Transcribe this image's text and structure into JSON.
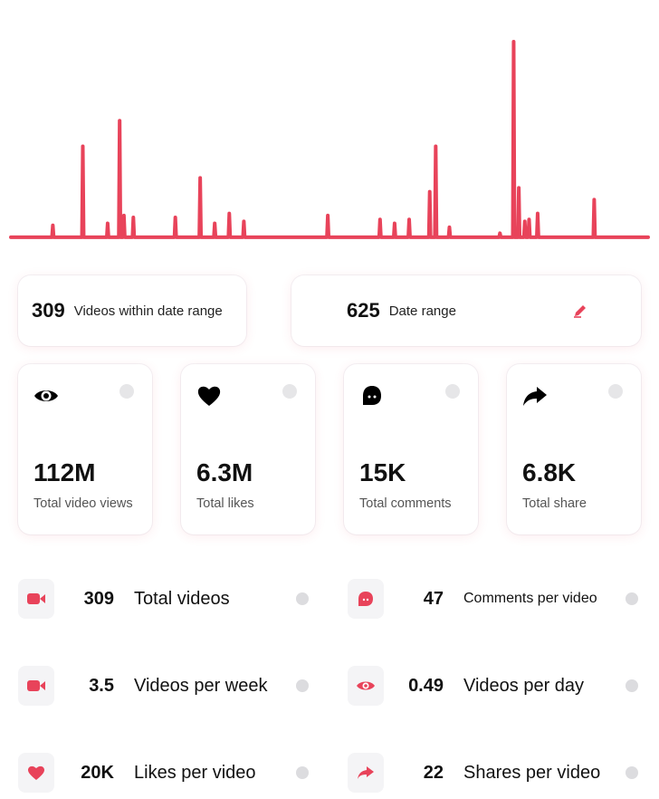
{
  "chart_data": {
    "type": "line",
    "title": "",
    "xlabel": "",
    "ylabel": "",
    "color": "#e8435a",
    "baseline_color": "#7fb7ea",
    "y_max": 100,
    "values": [
      1,
      1,
      1,
      1,
      1,
      1,
      1,
      1,
      1,
      1,
      1,
      1,
      1,
      1,
      1,
      1,
      1,
      1,
      1,
      1,
      1,
      1,
      1,
      1,
      1,
      1,
      1,
      1,
      1,
      1,
      1,
      1,
      1,
      1,
      1,
      1,
      1,
      1,
      1,
      1,
      1,
      1,
      1,
      1,
      1,
      1,
      1,
      1,
      1,
      7,
      1,
      1,
      1,
      1,
      1,
      1,
      1,
      1,
      1,
      1,
      1,
      1,
      1,
      1,
      1,
      1,
      1,
      1,
      1,
      1,
      1,
      1,
      1,
      1,
      1,
      1,
      1,
      1,
      1,
      1,
      1,
      1,
      1,
      1,
      47,
      1,
      1,
      1,
      1,
      1,
      1,
      1,
      1,
      1,
      1,
      1,
      1,
      1,
      1,
      1,
      1,
      1,
      1,
      1,
      1,
      1,
      1,
      1,
      1,
      1,
      1,
      1,
      1,
      8,
      1,
      1,
      1,
      1,
      1,
      1,
      1,
      1,
      1,
      1,
      1,
      1,
      1,
      60,
      1,
      1,
      1,
      1,
      12,
      1,
      1,
      1,
      1,
      1,
      1,
      1,
      1,
      1,
      1,
      11,
      1,
      1,
      1,
      1,
      1,
      1,
      1,
      1,
      1,
      1,
      1,
      1,
      1,
      1,
      1,
      1,
      1,
      1,
      1,
      1,
      1,
      1,
      1,
      1,
      1,
      1,
      1,
      1,
      1,
      1,
      1,
      1,
      1,
      1,
      1,
      1,
      1,
      1,
      1,
      1,
      1,
      1,
      1,
      1,
      1,
      1,
      1,
      1,
      11,
      1,
      1,
      1,
      1,
      1,
      1,
      1,
      1,
      1,
      1,
      1,
      1,
      1,
      1,
      1,
      1,
      1,
      1,
      1,
      1,
      1,
      1,
      1,
      1,
      1,
      1,
      1,
      1,
      31,
      1,
      1,
      1,
      1,
      1,
      1,
      1,
      1,
      1,
      1,
      1,
      1,
      1,
      1,
      1,
      1,
      8,
      1,
      1,
      1,
      1,
      1,
      1,
      1,
      1,
      1,
      1,
      1,
      1,
      1,
      1,
      1,
      1,
      13,
      1,
      1,
      1,
      1,
      1,
      1,
      1,
      1,
      1,
      1,
      1,
      1,
      1,
      1,
      1,
      1,
      9,
      1,
      1,
      1,
      1,
      1,
      1,
      1,
      1,
      1,
      1,
      1,
      1,
      1,
      1,
      1,
      1,
      1,
      1,
      1,
      1,
      1,
      1,
      1,
      1,
      1,
      1,
      1,
      1,
      1,
      1,
      1,
      1,
      1,
      1,
      1,
      1,
      1,
      1,
      1,
      1,
      1,
      1,
      1,
      1,
      1,
      1,
      1,
      1,
      1,
      1,
      1,
      1,
      1,
      1,
      1,
      1,
      1,
      1,
      1,
      1,
      1,
      1,
      1,
      1,
      1,
      1,
      1,
      1,
      1,
      1,
      1,
      1,
      1,
      1,
      1,
      1,
      1,
      1,
      1,
      1,
      1,
      1,
      1,
      1,
      1,
      1,
      1,
      1,
      1,
      1,
      1,
      1,
      1,
      1,
      1,
      1,
      1,
      12,
      1,
      1,
      1,
      1,
      1,
      1,
      1,
      1,
      1,
      1,
      1,
      1,
      1,
      1,
      1,
      1,
      1,
      1,
      1,
      1,
      1,
      1,
      1,
      1,
      1,
      1,
      1,
      1,
      1,
      1,
      1,
      1,
      1,
      1,
      1,
      1,
      1,
      1,
      1,
      1,
      1,
      1,
      1,
      1,
      1,
      1,
      1,
      1,
      1,
      1,
      1,
      1,
      1,
      1,
      1,
      1,
      1,
      1,
      1,
      1,
      10,
      1,
      1,
      1,
      1,
      1,
      1,
      1,
      1,
      1,
      1,
      1,
      1,
      1,
      1,
      1,
      1,
      8,
      1,
      1,
      1,
      1,
      1,
      1,
      1,
      1,
      1,
      1,
      1,
      1,
      1,
      1,
      1,
      1,
      10,
      1,
      1,
      1,
      1,
      1,
      1,
      1,
      1,
      1,
      1,
      1,
      1,
      1,
      1,
      1,
      1,
      1,
      1,
      1,
      1,
      1,
      1,
      1,
      24,
      1,
      1,
      1,
      1,
      1,
      1,
      47,
      1,
      1,
      1,
      1,
      1,
      1,
      1,
      1,
      1,
      1,
      1,
      1,
      1,
      1,
      1,
      6,
      1,
      1,
      1,
      1,
      1,
      1,
      1,
      1,
      1,
      1,
      1,
      1,
      1,
      1,
      1,
      1,
      1,
      1,
      1,
      1,
      1,
      1,
      1,
      1,
      1,
      1,
      1,
      1,
      1,
      1,
      1,
      1,
      1,
      1,
      1,
      1,
      1,
      1,
      1,
      1,
      1,
      1,
      1,
      1,
      1,
      1,
      1,
      1,
      1,
      1,
      1,
      1,
      1,
      1,
      1,
      1,
      1,
      1,
      3,
      1,
      1,
      1,
      1,
      1,
      1,
      1,
      1,
      1,
      1,
      1,
      1,
      1,
      1,
      1,
      100,
      1,
      1,
      1,
      1,
      1,
      26,
      1,
      1,
      1,
      1,
      1,
      1,
      9,
      1,
      1,
      1,
      1,
      10,
      1,
      1,
      1,
      1,
      1,
      1,
      1,
      1,
      1,
      13,
      1,
      1,
      1,
      1,
      1,
      1,
      1,
      1,
      1,
      1,
      1,
      1,
      1,
      1,
      1,
      1,
      1,
      1,
      1,
      1,
      1,
      1,
      1,
      1,
      1,
      1,
      1,
      1,
      1,
      1,
      1,
      1,
      1,
      1,
      1,
      1,
      1,
      1,
      1,
      1,
      1,
      1,
      1,
      1,
      1,
      1,
      1,
      1,
      1,
      1,
      1,
      1,
      1,
      1,
      1,
      1,
      1,
      1,
      1,
      1,
      1,
      1,
      1,
      1,
      1,
      20,
      1,
      1,
      1,
      1,
      1,
      1,
      1,
      1,
      1,
      1,
      1,
      1,
      1,
      1,
      1,
      1,
      1,
      1,
      1,
      1,
      1,
      1,
      1,
      1,
      1,
      1,
      1,
      1,
      1,
      1,
      1,
      1,
      1,
      1,
      1,
      1,
      1,
      1,
      1,
      1,
      1,
      1,
      1,
      1,
      1,
      1,
      1,
      1,
      1,
      1,
      1,
      1,
      1,
      1,
      1,
      1,
      1,
      1,
      1,
      1,
      1,
      1,
      1
    ]
  },
  "summary": {
    "videos": {
      "value": "309",
      "label": "Videos within date range"
    },
    "range": {
      "value": "625",
      "label": "Date range",
      "edit_icon": "pencil-icon"
    }
  },
  "metrics": [
    {
      "icon": "eye-icon",
      "value": "112M",
      "label": "Total video views"
    },
    {
      "icon": "heart-icon",
      "value": "6.3M",
      "label": "Total likes"
    },
    {
      "icon": "comment-icon",
      "value": "15K",
      "label": "Total comments"
    },
    {
      "icon": "share-icon",
      "value": "6.8K",
      "label": "Total share"
    }
  ],
  "stats": [
    {
      "icon": "video-icon",
      "value": "309",
      "label": "Total videos"
    },
    {
      "icon": "comment-icon",
      "value": "47",
      "label": "Comments per video"
    },
    {
      "icon": "video-icon",
      "value": "3.5",
      "label": "Videos per week"
    },
    {
      "icon": "eye-icon",
      "value": "0.49",
      "label": "Videos per day"
    },
    {
      "icon": "heart-icon",
      "value": "20K",
      "label": "Likes per video"
    },
    {
      "icon": "share-icon",
      "value": "22",
      "label": "Shares per video"
    }
  ],
  "colors": {
    "accent": "#e8435a",
    "info": "#e6e6e8"
  }
}
